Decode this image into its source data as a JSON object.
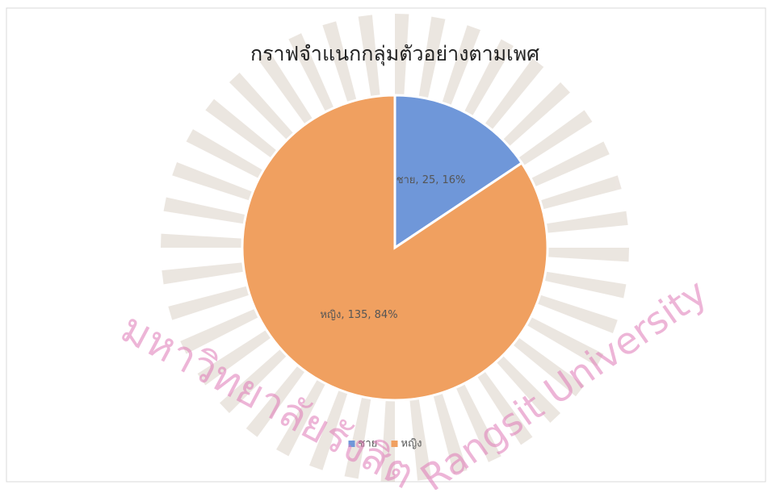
{
  "chart_data": {
    "type": "pie",
    "title": "กราฟจำแนกกลุ่มตัวอย่างตามเพศ",
    "categories": [
      "ชาย",
      "หญิง"
    ],
    "values": [
      25,
      135
    ],
    "value_labels": [
      "ชาย, 25, 16%",
      "หญิง, 135, 84%"
    ],
    "colors": [
      "#6f97d9",
      "#f0a060"
    ],
    "legend": "bottom"
  },
  "watermark": [
    "มหาวิทยาลัยรังสิต",
    "Rangsit University"
  ]
}
